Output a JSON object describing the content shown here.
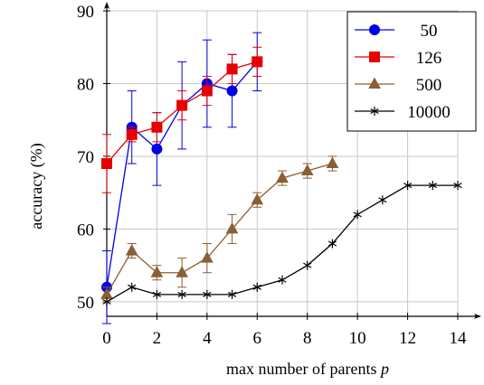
{
  "chart_data": {
    "type": "line",
    "xlabel": "max number of parents ",
    "xlabel_var": "p",
    "ylabel": "accuracy (%)",
    "xlim": [
      0,
      14
    ],
    "ylim": [
      48,
      90
    ],
    "xticks": [
      "0",
      "2",
      "4",
      "6",
      "8",
      "10",
      "12",
      "14"
    ],
    "yticks": [
      "50",
      "60",
      "70",
      "80",
      "90"
    ],
    "grid": true,
    "legend_position": "top-right",
    "series": [
      {
        "name": "50",
        "color": "#0000e6",
        "marker": "circle",
        "x": [
          0,
          1,
          2,
          3,
          4,
          5,
          6
        ],
        "y": [
          52,
          74,
          71,
          77,
          80,
          79,
          83
        ],
        "err": [
          5,
          5,
          5,
          6,
          6,
          5,
          4
        ]
      },
      {
        "name": "126",
        "color": "#e60000",
        "marker": "square",
        "x": [
          0,
          1,
          2,
          3,
          4,
          5,
          6
        ],
        "y": [
          69,
          73,
          74,
          77,
          79,
          82,
          83
        ],
        "err": [
          4,
          1,
          2,
          2,
          2,
          2,
          2
        ]
      },
      {
        "name": "500",
        "color": "#8b5e34",
        "marker": "triangle",
        "x": [
          0,
          1,
          2,
          3,
          4,
          5,
          6,
          7,
          8,
          9
        ],
        "y": [
          51,
          57,
          54,
          54,
          56,
          60,
          64,
          67,
          68,
          69
        ],
        "err": [
          1,
          1,
          1,
          2,
          2,
          2,
          1,
          1,
          1,
          1
        ]
      },
      {
        "name": "10000",
        "color": "#000000",
        "marker": "star",
        "x": [
          0,
          1,
          2,
          3,
          4,
          5,
          6,
          7,
          8,
          9,
          10,
          11,
          12,
          13,
          14
        ],
        "y": [
          50,
          52,
          51,
          51,
          51,
          51,
          52,
          53,
          55,
          58,
          62,
          64,
          66,
          66,
          66
        ],
        "err": []
      }
    ]
  }
}
